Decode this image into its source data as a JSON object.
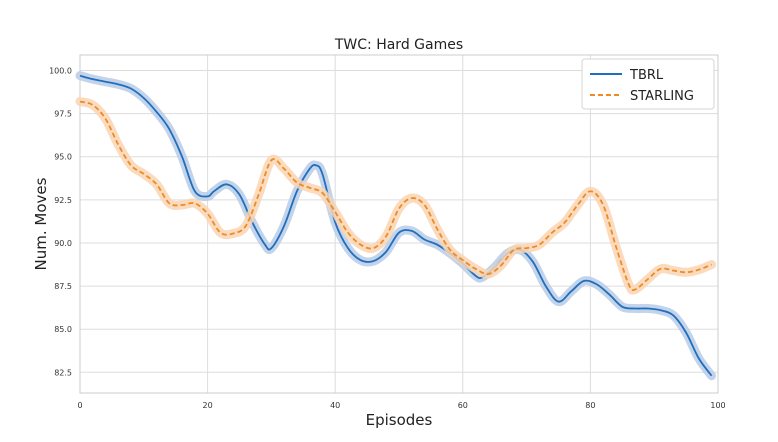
{
  "chart_data": {
    "type": "line",
    "title": "TWC: Hard Games",
    "xlabel": "Episodes",
    "ylabel": "Num. Moves",
    "xlim": [
      0,
      100
    ],
    "ylim": [
      81.3,
      100.9
    ],
    "xticks": [
      0,
      20,
      40,
      60,
      80,
      100
    ],
    "yticks": [
      82.5,
      85.0,
      87.5,
      90.0,
      92.5,
      95.0,
      97.5,
      100.0
    ],
    "ytick_labels": [
      "82.5",
      "85.0",
      "87.5",
      "90.0",
      "92.5",
      "95.0",
      "97.5",
      "100.0"
    ],
    "xtick_labels": [
      "0",
      "20",
      "40",
      "60",
      "80",
      "100"
    ],
    "grid": true,
    "legend_position": "top-right",
    "series": [
      {
        "name": "TBRL",
        "color": "#1f6fbf",
        "band_color": "#b9cbe6",
        "style": "solid",
        "x": [
          0,
          2,
          4,
          6,
          8,
          10,
          12,
          14,
          16,
          18,
          20,
          21,
          23,
          25,
          27,
          29,
          30,
          32,
          34,
          36,
          37,
          38,
          40,
          42,
          44,
          46,
          48,
          50,
          52,
          54,
          56,
          58,
          60,
          62,
          63,
          65,
          67,
          69,
          71,
          73,
          75,
          77,
          79,
          81,
          83,
          85,
          87,
          89,
          91,
          93,
          95,
          97,
          99
        ],
        "y": [
          99.7,
          99.5,
          99.35,
          99.2,
          98.95,
          98.4,
          97.6,
          96.6,
          95.0,
          93.0,
          92.7,
          93.0,
          93.4,
          92.8,
          91.2,
          89.9,
          89.7,
          91.0,
          93.0,
          94.3,
          94.5,
          94.0,
          91.2,
          89.7,
          89.0,
          88.95,
          89.5,
          90.6,
          90.7,
          90.2,
          89.9,
          89.4,
          88.8,
          88.1,
          88.0,
          88.6,
          89.4,
          89.6,
          88.9,
          87.5,
          86.6,
          87.2,
          87.8,
          87.6,
          87.0,
          86.3,
          86.2,
          86.2,
          86.1,
          85.8,
          84.8,
          83.3,
          82.3
        ]
      },
      {
        "name": "STARLING",
        "color": "#f08a24",
        "band_color": "#f9d5b3",
        "style": "dashed",
        "x": [
          0,
          2,
          4,
          6,
          8,
          10,
          12,
          14,
          16,
          18,
          20,
          22,
          24,
          26,
          28,
          30,
          32,
          34,
          36,
          38,
          40,
          42,
          44,
          46,
          48,
          50,
          52,
          54,
          56,
          58,
          60,
          62,
          64,
          66,
          68,
          70,
          72,
          74,
          76,
          78,
          80,
          82,
          84,
          86,
          87,
          89,
          91,
          93,
          95,
          97,
          99
        ],
        "y": [
          98.2,
          98.0,
          97.2,
          95.7,
          94.5,
          94.0,
          93.4,
          92.3,
          92.2,
          92.3,
          91.7,
          90.6,
          90.55,
          91.0,
          92.8,
          94.8,
          94.3,
          93.5,
          93.2,
          92.9,
          91.8,
          90.6,
          89.9,
          89.7,
          90.4,
          92.0,
          92.6,
          92.2,
          90.8,
          89.6,
          89.0,
          88.5,
          88.2,
          88.7,
          89.6,
          89.7,
          89.9,
          90.6,
          91.2,
          92.2,
          93.0,
          92.2,
          89.8,
          87.6,
          87.3,
          87.9,
          88.5,
          88.4,
          88.3,
          88.45,
          88.75
        ]
      }
    ]
  }
}
